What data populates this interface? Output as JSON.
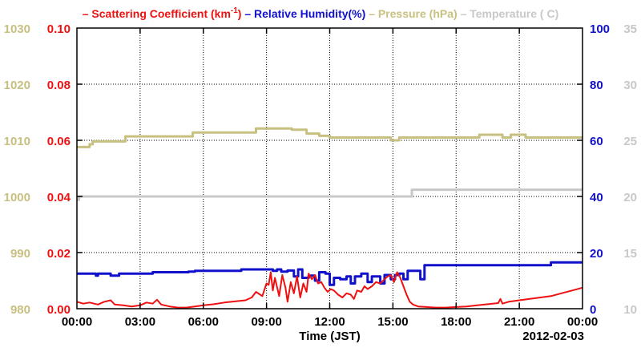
{
  "chart_data": {
    "type": "line",
    "legend": [
      {
        "key": "scattering",
        "prefix": "– ",
        "text": "Scattering Coefficient (km",
        "sup": "-1",
        "suffix": ")",
        "color": "#ee1111"
      },
      {
        "key": "rh",
        "prefix": "– ",
        "text": "Relative Humidity(%)",
        "color": "#1111cc"
      },
      {
        "key": "pressure",
        "prefix": "– ",
        "text": "Pressure (hPa)",
        "color": "#c8c080"
      },
      {
        "key": "temperature",
        "prefix": "– ",
        "text": "Temperature (  C)",
        "color": "#c8c8c8"
      }
    ],
    "xlabel": "Time (JST)",
    "date_label": "2012-02-03",
    "x_ticks": [
      "00:00",
      "03:00",
      "06:00",
      "09:00",
      "12:00",
      "15:00",
      "18:00",
      "21:00",
      "00:00"
    ],
    "x_range_hours": [
      0,
      24
    ],
    "grid": true,
    "axes": {
      "pressure": {
        "ticks": [
          "980",
          "990",
          "1000",
          "1010",
          "1020",
          "1030"
        ],
        "range": [
          980,
          1030
        ],
        "color": "#c8c080",
        "side": "left-outer"
      },
      "scattering": {
        "ticks": [
          "0.00",
          "0.02",
          "0.04",
          "0.06",
          "0.08",
          "0.10"
        ],
        "range": [
          0,
          0.1
        ],
        "color": "#ee1111",
        "side": "left-inner"
      },
      "rh": {
        "ticks": [
          "0",
          "20",
          "40",
          "60",
          "80",
          "100"
        ],
        "range": [
          0,
          100
        ],
        "color": "#1111cc",
        "side": "right-inner"
      },
      "temperature": {
        "ticks": [
          "10",
          "15",
          "20",
          "25",
          "30",
          "35"
        ],
        "range": [
          10,
          35
        ],
        "color": "#c8c8c8",
        "side": "right-outer"
      }
    },
    "series": [
      {
        "key": "pressure",
        "name": "Pressure (hPa)",
        "color": "#c8c080",
        "step": true,
        "points": [
          [
            0,
            1008.8
          ],
          [
            0.6,
            1009.3
          ],
          [
            0.75,
            1009.8
          ],
          [
            2.3,
            1010.7
          ],
          [
            5.5,
            1011.4
          ],
          [
            7.5,
            1011.4
          ],
          [
            8.5,
            1012.1
          ],
          [
            9.3,
            1012.1
          ],
          [
            10.2,
            1011.9
          ],
          [
            10.9,
            1011.2
          ],
          [
            11.5,
            1010.8
          ],
          [
            12.0,
            1010.5
          ],
          [
            13.5,
            1010.5
          ],
          [
            14.9,
            1010.0
          ],
          [
            15.3,
            1010.5
          ],
          [
            18.4,
            1010.5
          ],
          [
            19.1,
            1011.0
          ],
          [
            20.1,
            1011.0
          ],
          [
            20.2,
            1010.5
          ],
          [
            20.5,
            1010.5
          ],
          [
            20.6,
            1011.0
          ],
          [
            21.0,
            1011.0
          ],
          [
            21.3,
            1010.5
          ],
          [
            24,
            1010.5
          ]
        ]
      },
      {
        "key": "temperature",
        "name": "Temperature (  C)",
        "color": "#c8c8c8",
        "step": true,
        "points": [
          [
            0,
            19.7
          ],
          [
            0.1,
            20.0
          ],
          [
            15.7,
            20.0
          ],
          [
            15.9,
            20.6
          ],
          [
            24,
            20.6
          ]
        ]
      },
      {
        "key": "rh",
        "name": "Relative Humidity(%)",
        "color": "#1111cc",
        "step": true,
        "points": [
          [
            0,
            12.5
          ],
          [
            0.8,
            12.5
          ],
          [
            0.9,
            11.8
          ],
          [
            1.0,
            12.5
          ],
          [
            1.5,
            12.5
          ],
          [
            1.6,
            11.8
          ],
          [
            2.0,
            12.5
          ],
          [
            3.5,
            12.5
          ],
          [
            3.6,
            13.0
          ],
          [
            5.3,
            13.2
          ],
          [
            5.6,
            13.5
          ],
          [
            7.5,
            13.5
          ],
          [
            7.8,
            14.0
          ],
          [
            9.0,
            14.0
          ],
          [
            9.3,
            13.5
          ],
          [
            9.5,
            14.0
          ],
          [
            9.7,
            13.2
          ],
          [
            10.0,
            13.6
          ],
          [
            10.3,
            11.5
          ],
          [
            10.5,
            14.0
          ],
          [
            10.7,
            11.0
          ],
          [
            11.0,
            11.8
          ],
          [
            11.3,
            10.0
          ],
          [
            11.5,
            13.0
          ],
          [
            11.8,
            12.5
          ],
          [
            12.0,
            8.5
          ],
          [
            12.2,
            11.0
          ],
          [
            12.5,
            10.5
          ],
          [
            12.8,
            11.5
          ],
          [
            13.0,
            9.0
          ],
          [
            13.2,
            11.5
          ],
          [
            13.5,
            12.5
          ],
          [
            13.8,
            9.5
          ],
          [
            14.0,
            11.5
          ],
          [
            14.4,
            9.0
          ],
          [
            14.6,
            12.0
          ],
          [
            14.9,
            10.5
          ],
          [
            15.1,
            12.0
          ],
          [
            15.3,
            12.5
          ],
          [
            15.5,
            10.5
          ],
          [
            15.7,
            13.5
          ],
          [
            15.9,
            13.5
          ],
          [
            16.3,
            10.5
          ],
          [
            16.5,
            15.5
          ],
          [
            22.4,
            15.5
          ],
          [
            22.5,
            16.5
          ],
          [
            24,
            16.5
          ]
        ]
      },
      {
        "key": "scattering",
        "name": "Scattering Coefficient (km-1)",
        "color": "#ee1111",
        "step": false,
        "points": [
          [
            0,
            0.0025
          ],
          [
            0.3,
            0.0018
          ],
          [
            0.6,
            0.0022
          ],
          [
            1.0,
            0.0015
          ],
          [
            1.3,
            0.0025
          ],
          [
            1.6,
            0.003
          ],
          [
            1.8,
            0.0015
          ],
          [
            2.2,
            0.0012
          ],
          [
            2.6,
            0.0008
          ],
          [
            3.0,
            0.0012
          ],
          [
            3.3,
            0.0022
          ],
          [
            3.6,
            0.0018
          ],
          [
            3.8,
            0.0032
          ],
          [
            4.0,
            0.0015
          ],
          [
            4.4,
            0.0008
          ],
          [
            4.8,
            0.0004
          ],
          [
            5.2,
            0.0004
          ],
          [
            5.6,
            0.0008
          ],
          [
            6.0,
            0.0012
          ],
          [
            6.5,
            0.0016
          ],
          [
            7.0,
            0.0022
          ],
          [
            7.5,
            0.0026
          ],
          [
            8.0,
            0.003
          ],
          [
            8.3,
            0.004
          ],
          [
            8.5,
            0.006
          ],
          [
            8.8,
            0.0045
          ],
          [
            9.0,
            0.009
          ],
          [
            9.1,
            0.0085
          ],
          [
            9.2,
            0.013
          ],
          [
            9.3,
            0.0065
          ],
          [
            9.4,
            0.011
          ],
          [
            9.6,
            0.0045
          ],
          [
            9.75,
            0.012
          ],
          [
            9.9,
            0.0075
          ],
          [
            10.0,
            0.0025
          ],
          [
            10.15,
            0.0095
          ],
          [
            10.3,
            0.0055
          ],
          [
            10.45,
            0.0115
          ],
          [
            10.6,
            0.004
          ],
          [
            10.75,
            0.009
          ],
          [
            10.9,
            0.006
          ],
          [
            11.0,
            0.0125
          ],
          [
            11.15,
            0.0105
          ],
          [
            11.3,
            0.012
          ],
          [
            11.45,
            0.009
          ],
          [
            11.6,
            0.0095
          ],
          [
            11.75,
            0.0075
          ],
          [
            11.9,
            0.006
          ],
          [
            12.05,
            0.007
          ],
          [
            12.2,
            0.0065
          ],
          [
            12.4,
            0.005
          ],
          [
            12.6,
            0.004
          ],
          [
            12.8,
            0.0055
          ],
          [
            13.0,
            0.005
          ],
          [
            13.15,
            0.0035
          ],
          [
            13.3,
            0.0065
          ],
          [
            13.5,
            0.006
          ],
          [
            13.65,
            0.008
          ],
          [
            13.8,
            0.007
          ],
          [
            14.0,
            0.008
          ],
          [
            14.2,
            0.0095
          ],
          [
            14.4,
            0.009
          ],
          [
            14.6,
            0.0105
          ],
          [
            14.75,
            0.0115
          ],
          [
            14.9,
            0.012
          ],
          [
            15.05,
            0.0095
          ],
          [
            15.2,
            0.013
          ],
          [
            15.35,
            0.011
          ],
          [
            15.5,
            0.008
          ],
          [
            15.65,
            0.005
          ],
          [
            15.8,
            0.0025
          ],
          [
            15.95,
            0.0015
          ],
          [
            16.2,
            0.0008
          ],
          [
            16.6,
            0.0006
          ],
          [
            17.0,
            0.0004
          ],
          [
            17.5,
            0.0004
          ],
          [
            18.0,
            0.0006
          ],
          [
            18.5,
            0.0008
          ],
          [
            19.0,
            0.0012
          ],
          [
            19.5,
            0.0016
          ],
          [
            20.0,
            0.002
          ],
          [
            20.1,
            0.0035
          ],
          [
            20.2,
            0.0018
          ],
          [
            20.5,
            0.0025
          ],
          [
            21.0,
            0.003
          ],
          [
            21.5,
            0.0035
          ],
          [
            22.0,
            0.004
          ],
          [
            22.5,
            0.0045
          ],
          [
            23.0,
            0.0055
          ],
          [
            23.5,
            0.0065
          ],
          [
            24,
            0.0075
          ]
        ]
      }
    ]
  }
}
